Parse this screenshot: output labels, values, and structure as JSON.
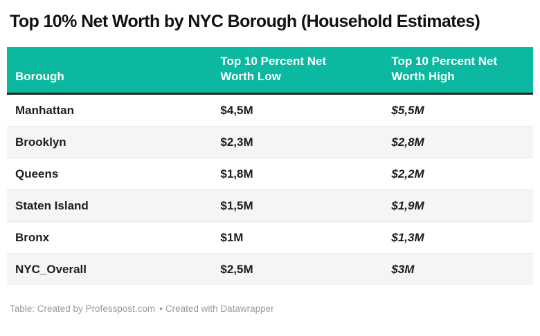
{
  "page": {
    "title": "Top 10% Net Worth by NYC Borough (Household Estimates)",
    "footer": {
      "attribution": "Table: Created by Professpost.com",
      "separator": "•",
      "credit": "Created with Datawrapper"
    }
  },
  "chart_data": {
    "type": "table",
    "title": "Top 10% Net Worth by NYC Borough (Household Estimates)",
    "columns": [
      "Borough",
      "Top 10 Percent Net Worth Low",
      "Top 10 Percent Net Worth High"
    ],
    "rows": [
      [
        "Manhattan",
        "$4,5M",
        "$5,5M"
      ],
      [
        "Brooklyn",
        "$2,3M",
        "$2,8M"
      ],
      [
        "Queens",
        "$1,8M",
        "$2,2M"
      ],
      [
        "Staten Island",
        "$1,5M",
        "$1,9M"
      ],
      [
        "Bronx",
        "$1M",
        "$1,3M"
      ],
      [
        "NYC_Overall",
        "$2,5M",
        "$3M"
      ]
    ],
    "categories": [
      "Manhattan",
      "Brooklyn",
      "Queens",
      "Staten Island",
      "Bronx",
      "NYC_Overall"
    ],
    "series": [
      {
        "name": "Top 10 Percent Net Worth Low ($M)",
        "values": [
          4.5,
          2.3,
          1.8,
          1.5,
          1.0,
          2.5
        ]
      },
      {
        "name": "Top 10 Percent Net Worth High ($M)",
        "values": [
          5.5,
          2.8,
          2.2,
          1.9,
          1.3,
          3.0
        ]
      }
    ],
    "layout": {
      "striped_rows": true,
      "header_position": "top",
      "units": "millions USD"
    }
  },
  "colors": {
    "header_bg": "#0cb9a0",
    "header_text": "#ffffff",
    "header_border_bottom": "#1c1f1e",
    "row_stripe": "#f5f5f5",
    "row_divider": "#e9e9e9",
    "title_text": "#121212",
    "body_text": "#1d1d1d",
    "footer_text": "#9a9a9a"
  }
}
